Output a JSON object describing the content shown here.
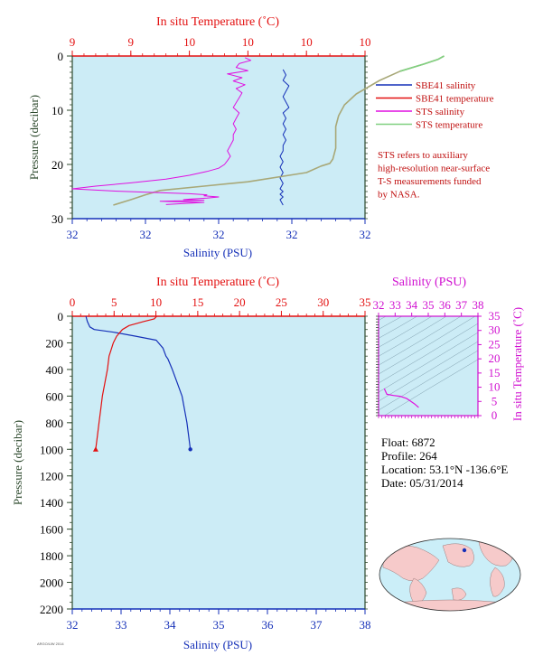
{
  "colors": {
    "salinity": "#1530b8",
    "temperature": "#e31010",
    "sts_salinity": "#e010e0",
    "sts_temperature": "#80d080",
    "sts_temp_mix": "#a8a878",
    "plot_bg": "#ccecf6",
    "pressure_axis": "#2e4a2e",
    "land": "#f6caca",
    "ocean": "#cbeef8"
  },
  "chart_data": [
    {
      "type": "line",
      "title": "In situ Temperature (˚C)",
      "xlabel": "Salinity (PSU)",
      "ylabel": "Pressure (decibar)",
      "x_ticks": [
        "32",
        "32",
        "32",
        "32",
        "32"
      ],
      "top_ticks": [
        "9",
        "9",
        "10",
        "10",
        "10",
        "10"
      ],
      "y_ticks": [
        "0",
        "10",
        "20",
        "30"
      ],
      "ylim": [
        0,
        30
      ],
      "top_xlim": [
        9,
        10
      ],
      "legend": [
        "SBE41 salinity",
        "SBE41 temperature",
        "STS salinity",
        "STS temperature"
      ],
      "note": [
        "STS refers to auxiliary",
        "high-resolution near-surface",
        "T-S measurements funded",
        "by NASA."
      ],
      "series": [
        {
          "name": "SBE41 salinity",
          "axis": "bottom_frac",
          "x": [
            0.72,
            0.73,
            0.72,
            0.74,
            0.73,
            0.72,
            0.73,
            0.74,
            0.72,
            0.73,
            0.72,
            0.73,
            0.72,
            0.73,
            0.72,
            0.72,
            0.71,
            0.72,
            0.71,
            0.72,
            0.71,
            0.72,
            0.71,
            0.72,
            0.71,
            0.72,
            0.71,
            0.72
          ],
          "y": [
            2.5,
            3.5,
            4.5,
            5.5,
            6.5,
            7.5,
            8.5,
            9.5,
            10.5,
            11.5,
            12.5,
            13.5,
            14.5,
            15.5,
            16.5,
            17.5,
            18.5,
            19.5,
            20.5,
            21.5,
            22.5,
            23.5,
            24.5,
            25,
            25.5,
            26,
            26.5,
            27.5
          ]
        },
        {
          "name": "STS temperature",
          "axis": "top",
          "x": [
            10.27,
            10.25,
            10.2,
            10.12,
            10.05,
            9.97,
            9.93,
            9.91,
            9.9,
            9.9,
            9.9,
            9.89,
            9.88,
            9.85,
            9.8,
            9.6,
            9.45,
            9.3,
            9.25,
            9.2,
            9.14
          ],
          "y": [
            0,
            0.6,
            1.5,
            2.8,
            4.5,
            7,
            9,
            11,
            13,
            15,
            17,
            19,
            19.8,
            20.3,
            21.5,
            23.2,
            24,
            24.8,
            25.6,
            26.5,
            27.5
          ]
        },
        {
          "name": "STS salinity",
          "axis": "bottom_frac",
          "x": [
            0.59,
            0.61,
            0.57,
            0.56,
            0.6,
            0.53,
            0.58,
            0.55,
            0.59,
            0.56,
            0.58,
            0.57,
            0.56,
            0.55,
            0.57,
            0.56,
            0.55,
            0.56,
            0.55,
            0.55,
            0.54,
            0.53,
            0.54,
            0.53,
            0.52,
            0.5,
            0.46,
            0.4,
            0.32,
            0.2,
            0.08,
            0.0,
            0.14,
            0.3,
            0.4,
            0.46,
            0.45,
            0.5,
            0.46,
            0.4,
            0.38,
            0.45,
            0.3,
            0.45,
            0.32
          ],
          "y": [
            0.3,
            0.8,
            1.4,
            2.1,
            2.7,
            3.3,
            4.0,
            4.6,
            5.3,
            6.0,
            6.8,
            7.7,
            8.6,
            9.5,
            10.5,
            11.5,
            12.5,
            13.5,
            14.5,
            15.5,
            16.5,
            17.5,
            18.5,
            19.3,
            20.0,
            20.7,
            21.3,
            22.0,
            22.7,
            23.4,
            24.0,
            24.5,
            24.9,
            25.2,
            25.4,
            25.6,
            25.8,
            26.0,
            26.2,
            26.4,
            26.5,
            26.6,
            26.8,
            27.0,
            27.4
          ]
        }
      ]
    },
    {
      "type": "line",
      "title": "In situ Temperature (˚C)",
      "xlabel": "Salinity (PSU)",
      "ylabel": "Pressure (decibar)",
      "xlim": [
        32,
        38
      ],
      "top_xlim": [
        0,
        35
      ],
      "ylim": [
        0,
        2200
      ],
      "x_ticks": [
        "32",
        "33",
        "34",
        "35",
        "36",
        "37",
        "38"
      ],
      "top_ticks": [
        "0",
        "5",
        "10",
        "15",
        "20",
        "25",
        "30",
        "35"
      ],
      "y_ticks": [
        "0",
        "200",
        "400",
        "600",
        "800",
        "1000",
        "1200",
        "1400",
        "1600",
        "1800",
        "2000",
        "2200"
      ],
      "series": [
        {
          "name": "SBE41 salinity",
          "axis": "bottom",
          "x": [
            32.28,
            32.31,
            32.36,
            32.45,
            32.85,
            33.3,
            33.72,
            33.86,
            33.92,
            33.96,
            34.05,
            34.15,
            34.25,
            34.35,
            34.42
          ],
          "y": [
            0,
            40,
            80,
            100,
            120,
            150,
            180,
            240,
            300,
            320,
            400,
            500,
            600,
            800,
            1000
          ]
        },
        {
          "name": "SBE41 temperature",
          "axis": "top",
          "x": [
            10.1,
            9.8,
            8.5,
            6.8,
            6.0,
            5.3,
            4.9,
            4.6,
            4.4,
            4.2,
            3.9,
            3.6,
            3.4,
            3.2,
            3.0,
            2.8
          ],
          "y": [
            0,
            20,
            40,
            70,
            100,
            150,
            200,
            260,
            300,
            400,
            500,
            600,
            700,
            800,
            900,
            1000
          ]
        }
      ]
    },
    {
      "type": "line",
      "title": "Salinity (PSU)",
      "ylabel": "In situ Temperature (˚C)",
      "xlim": [
        32,
        38
      ],
      "ylim": [
        0,
        35
      ],
      "x_ticks": [
        "32",
        "33",
        "34",
        "35",
        "36",
        "37",
        "38"
      ],
      "y_ticks": [
        "0",
        "5",
        "10",
        "15",
        "20",
        "25",
        "30",
        "35"
      ],
      "series": [
        {
          "name": "SBE41 T-S",
          "x": [
            32.35,
            32.4,
            32.5,
            32.9,
            33.3,
            33.7,
            33.95,
            34.2,
            34.42
          ],
          "y": [
            9.5,
            8.8,
            7.5,
            7.1,
            6.8,
            6.0,
            5.0,
            4.0,
            2.9
          ]
        }
      ]
    }
  ],
  "info": {
    "float": "Float: 6872",
    "profile": "Profile: 264",
    "location": "Location: 53.1°N -136.6°E",
    "date": "Date: 05/31/2014"
  },
  "credit": "ARGO/UW 2014"
}
